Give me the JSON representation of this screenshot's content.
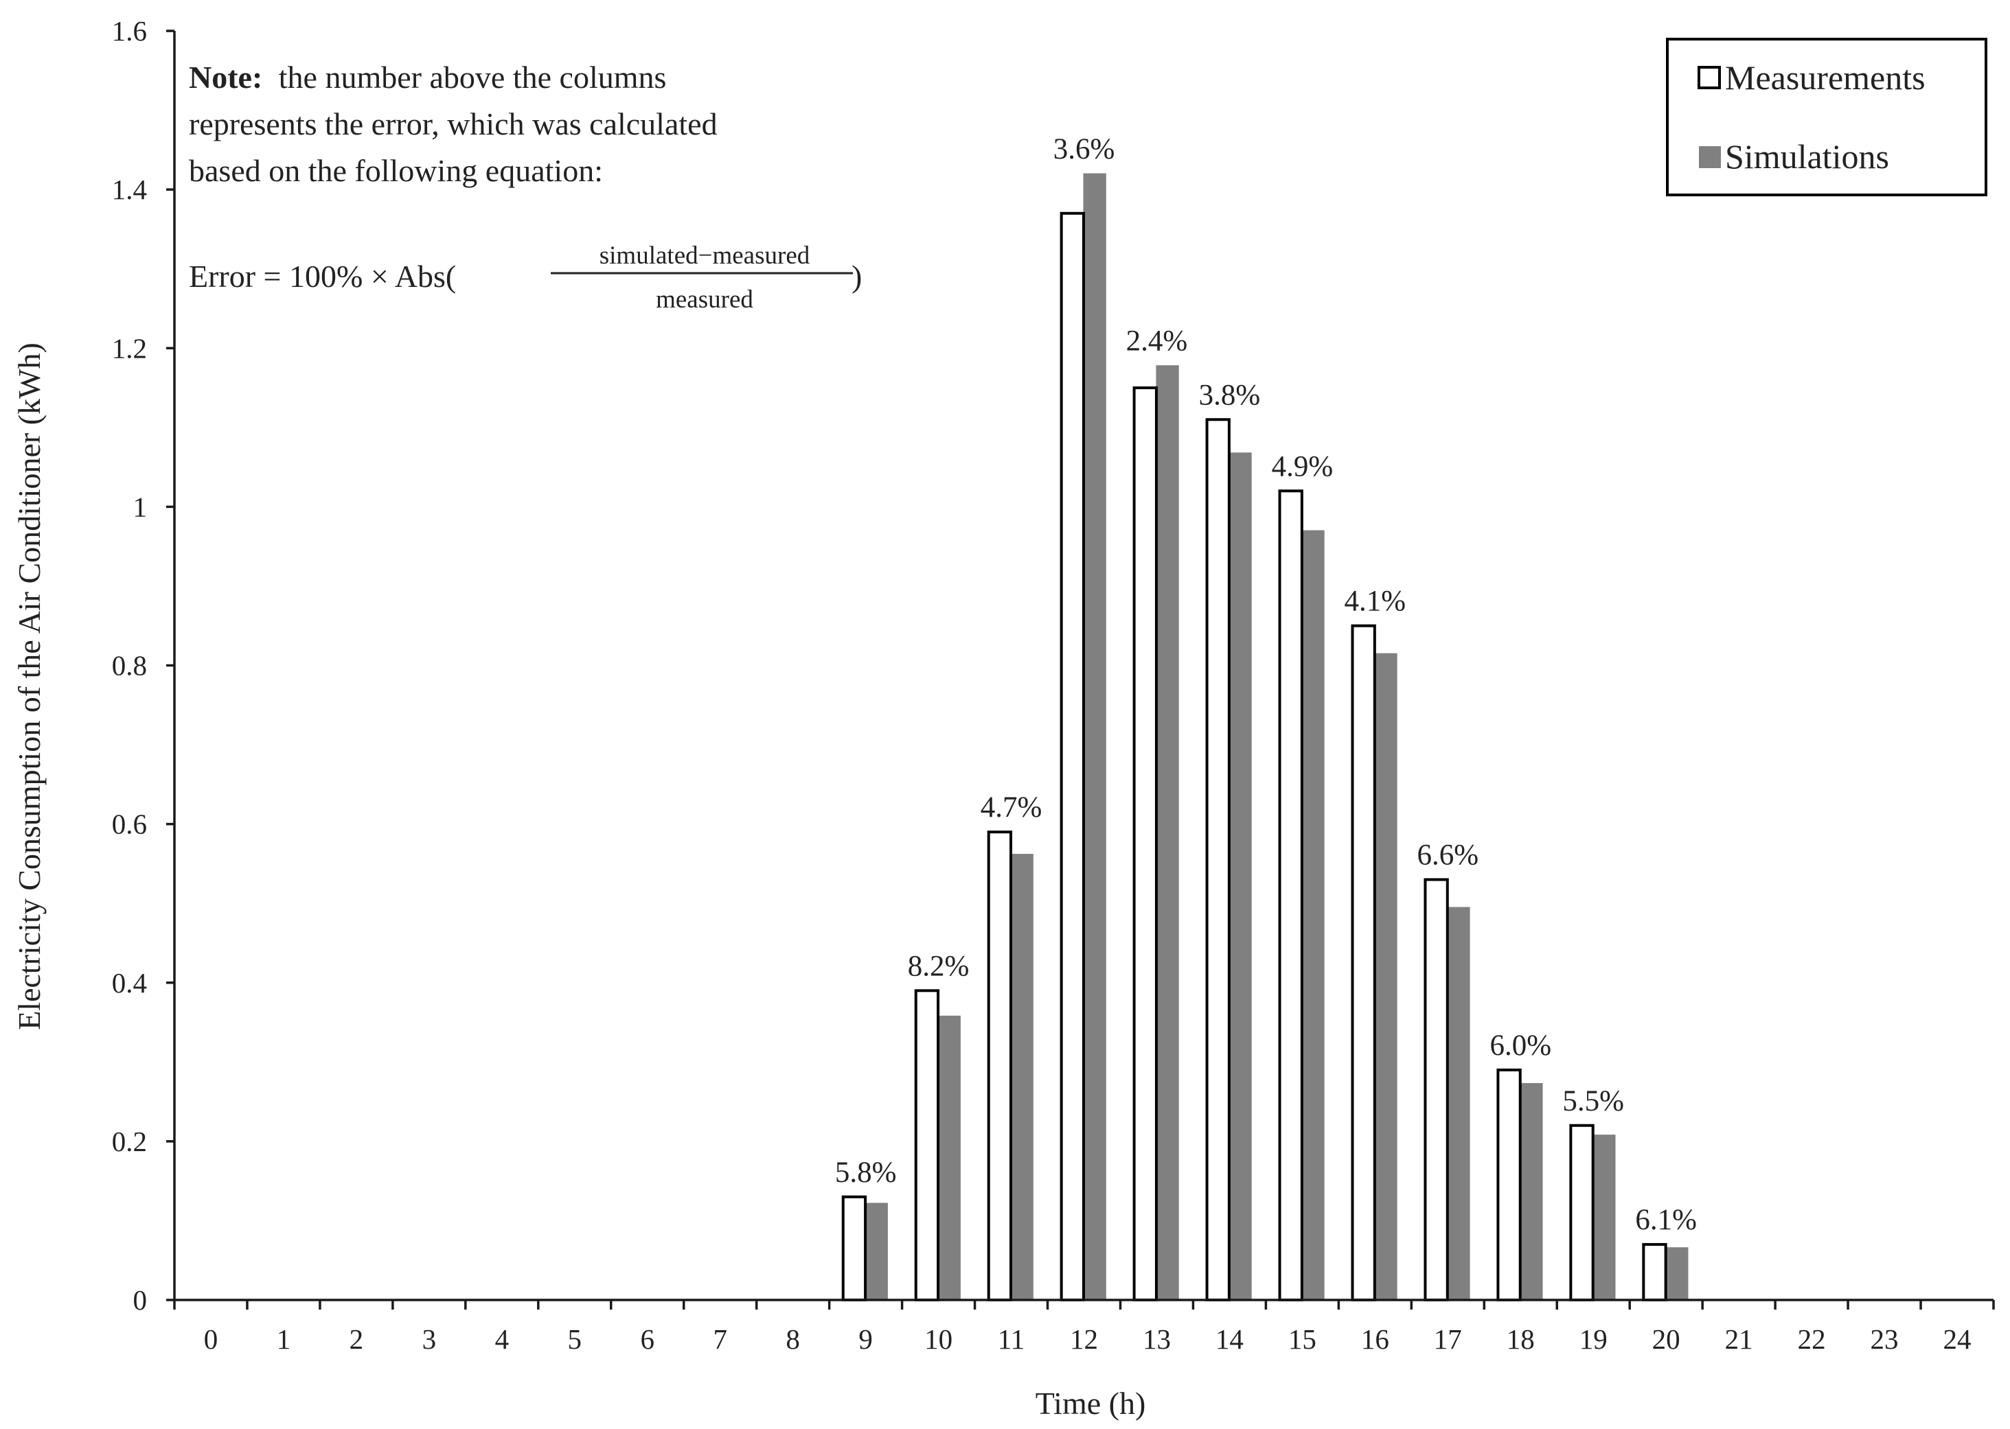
{
  "chart_data": {
    "type": "bar",
    "xlabel": "Time (h)",
    "ylabel": "Electricity Consumption of the Air Conditioner (kWh)",
    "ylim": [
      0,
      1.6
    ],
    "yticks": [
      "0",
      "0.2",
      "0.4",
      "0.6",
      "0.8",
      "1",
      "1.2",
      "1.4",
      "1.6"
    ],
    "categories": [
      "0",
      "1",
      "2",
      "3",
      "4",
      "5",
      "6",
      "7",
      "8",
      "9",
      "10",
      "11",
      "12",
      "13",
      "14",
      "15",
      "16",
      "17",
      "18",
      "19",
      "20",
      "21",
      "22",
      "23",
      "24"
    ],
    "series": [
      {
        "name": "Measurements",
        "color": "#ffffff",
        "stroke": "#000000",
        "values": [
          0,
          0,
          0,
          0,
          0,
          0,
          0,
          0,
          0,
          0.13,
          0.39,
          0.59,
          1.37,
          1.15,
          1.11,
          1.02,
          0.85,
          0.53,
          0.29,
          0.22,
          0.07,
          0,
          0,
          0,
          0
        ]
      },
      {
        "name": "Simulations",
        "color": "#808080",
        "stroke": "#808080",
        "values": [
          0,
          0,
          0,
          0,
          0,
          0,
          0,
          0,
          0,
          0.122,
          0.358,
          0.562,
          1.42,
          1.178,
          1.068,
          0.97,
          0.815,
          0.495,
          0.273,
          0.208,
          0.066,
          0,
          0,
          0,
          0
        ]
      }
    ],
    "error_labels": [
      "",
      "",
      "",
      "",
      "",
      "",
      "",
      "",
      "",
      "5.8%",
      "8.2%",
      "4.7%",
      "3.6%",
      "2.4%",
      "3.8%",
      "4.9%",
      "4.1%",
      "6.6%",
      "6.0%",
      "5.5%",
      "6.1%",
      "",
      "",
      "",
      ""
    ],
    "legend": {
      "placement": "top-right",
      "entries": [
        "Measurements",
        "Simulations"
      ]
    },
    "grid": false,
    "annotation": {
      "note_bold": "Note:",
      "note_line1": "the number above the columns",
      "note_line2": "represents the error, which was calculated",
      "note_line3": "based on the following equation:",
      "eq_prefix": "Error = 100% × Abs(",
      "eq_numerator": "simulated−measured",
      "eq_denominator": "measured",
      "eq_suffix": ")"
    }
  }
}
